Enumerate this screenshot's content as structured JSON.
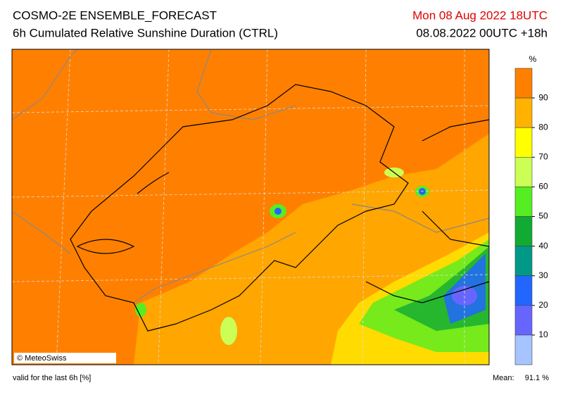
{
  "header": {
    "title": "COSMO-2E ENSEMBLE_FORECAST",
    "subtitle": "6h Cumulated Relative Sunshine Duration (CTRL)",
    "valid_time": "Mon 08 Aug 2022 18UTC",
    "run": "08.08.2022 00UTC +18h"
  },
  "legend": {
    "unit": "%",
    "ticks": [
      90,
      80,
      70,
      60,
      50,
      40,
      30,
      20,
      10
    ],
    "colors": [
      "#ff8000",
      "#ffb300",
      "#ffff00",
      "#ccff55",
      "#55ee22",
      "#11aa33",
      "#009988",
      "#2266ff",
      "#6666ff",
      "#a6c4ff"
    ]
  },
  "map": {
    "credit": "© MeteoSwiss"
  },
  "footer": {
    "note": "valid for the last 6h [%]",
    "mean_label": "Mean:",
    "mean_value": "91.1 %"
  }
}
